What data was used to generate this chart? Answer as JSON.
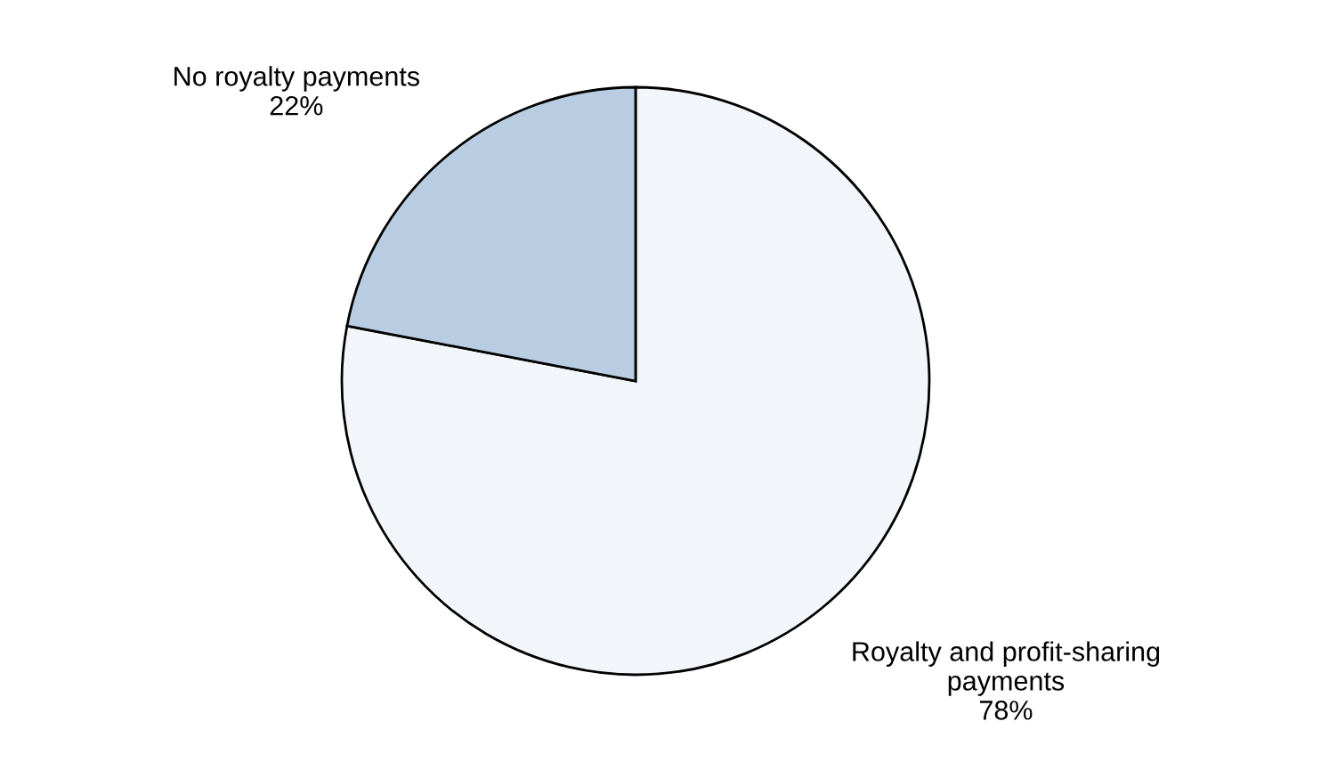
{
  "chart_data": {
    "type": "pie",
    "categories": [
      "Royalty and profit-sharing payments",
      "No royalty payments"
    ],
    "values": [
      78,
      22
    ],
    "colors": [
      "#f2f6fa",
      "#b9cde2"
    ],
    "value_labels": [
      "78%",
      "22%"
    ]
  }
}
